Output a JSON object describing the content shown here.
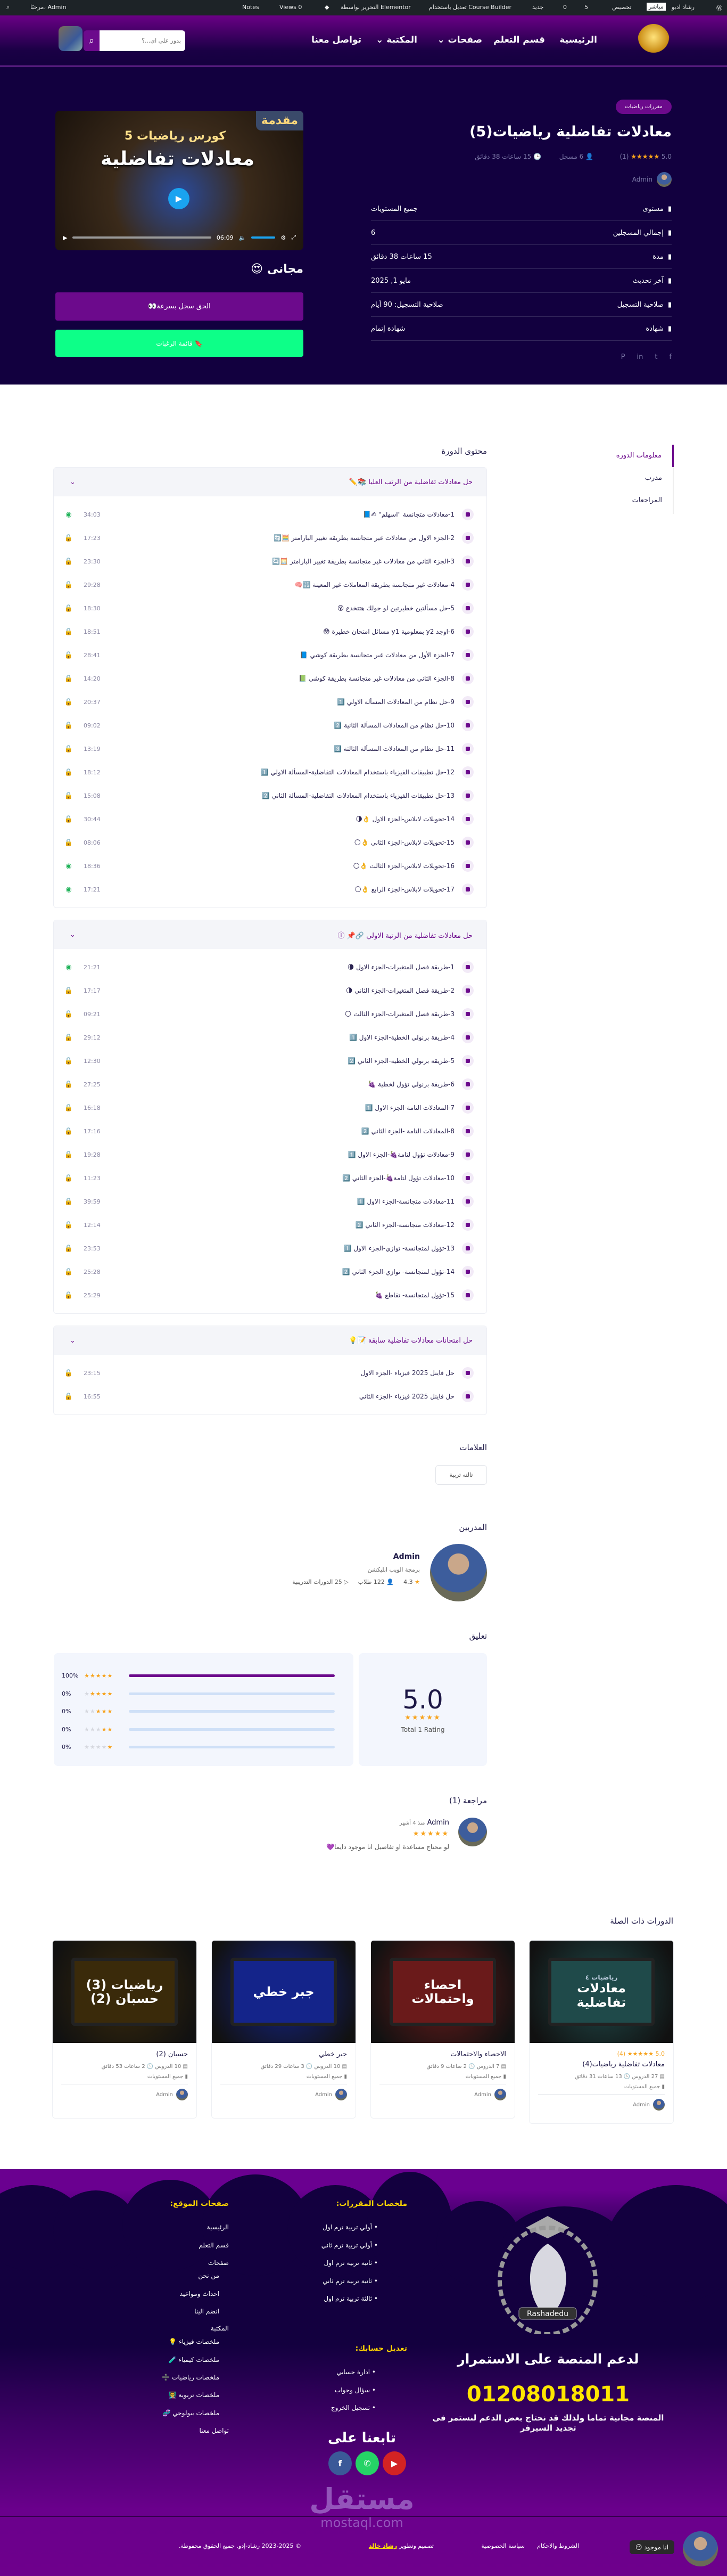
{
  "adminbar": {
    "site": "رشاد ادبو",
    "live": "مباشر",
    "customize": "تخصيص",
    "updates": "5",
    "comments": "0",
    "new": "جديد",
    "course_builder": "تعديل باستخدام Course Builder",
    "elementor": "التحرير بواسطة Elementor",
    "views": "Views 0",
    "notes": "Notes",
    "greeting": "مرحبًا، Admin"
  },
  "nav": {
    "items": [
      "الرئيسية",
      "قسم التعلم",
      "صفحات ⌄",
      "المكتبة ⌄",
      "تواصل معنا"
    ],
    "search_placeholder": "بدور على اي...؟"
  },
  "course": {
    "category": "مقررات رياضيات",
    "title": "معادلات تفاضلية رياضيات(5)",
    "rating": "5.0",
    "stars": "★★★★★",
    "rating_count": "(1)",
    "enrolled": "6 مسجل",
    "duration": "15 ساعات 38 دقائق",
    "author": "Admin",
    "info": [
      {
        "label": "مستوى",
        "icon": "bars-icon",
        "value": "جميع المستويات"
      },
      {
        "label": "إجمالي المسجلين",
        "icon": "user-icon",
        "value": "6"
      },
      {
        "label": "مدة",
        "icon": "clock-icon",
        "value": "15 ساعات 38 دقائق"
      },
      {
        "label": "آخر تحديث",
        "icon": "refresh-icon",
        "value": "مايو 1, 2025"
      },
      {
        "label": "صلاحية التسجيل",
        "icon": "calendar-icon",
        "value": "صلاحية التسجيل: 90 أيام"
      },
      {
        "label": "شهادة",
        "icon": "certificate-icon",
        "value": "شهادة إتمام"
      }
    ],
    "video": {
      "tag": "مقدمة",
      "line1": "كورس رياضيات 5",
      "line2": "معادلات تفاضلية",
      "time": "06:09"
    },
    "price": "مجانى 😍",
    "enroll_label": "الحق سجل بسرعة👀",
    "wishlist_label": "🔖 قائمة الرغبات"
  },
  "tabs": [
    "معلومات الدورة",
    "مدرب",
    "المراجعات"
  ],
  "curriculum": {
    "heading": "محتوى الدورة",
    "topics": [
      {
        "title": "حل معادلات تفاضلية من الرتب العليا 📚✏️",
        "lessons": [
          [
            "1-معادلات متجانسة \"اسهلم\" ✍📘",
            "34:03",
            "preview"
          ],
          [
            "2-الجزء الاول من معادلات غير متجانسة بطريقة تغيير البارامتر 🧮🔄",
            "17:23",
            "locked"
          ],
          [
            "3-الجزء الثاني من معادلات غير متجانسة بطريقة تغيير البارامتر 🧮🔄",
            "23:30",
            "locked"
          ],
          [
            "4-معادلات غير متجانسة بطريقة المعاملات غير المعينة 🔢🧠",
            "29:28",
            "locked"
          ],
          [
            "5-حل مسألتين خطيرتين لو جولك هتتخدع 😵",
            "18:30",
            "locked"
          ],
          [
            "6-اوجد y2 بمعلومية y1 مسائل امتحان خطيرة 😳",
            "18:51",
            "locked"
          ],
          [
            "7-الجزء الأول من معادلات غير متجانسة بطريقة كوشي 📘",
            "28:41",
            "locked"
          ],
          [
            "8-الجزء الثاني من معادلات غير متجانسة بطريقة كوشي 📗",
            "14:20",
            "locked"
          ],
          [
            "9-حل نظام من المعادلات المسألة الاولي 1️⃣",
            "20:37",
            "locked"
          ],
          [
            "10-حل نظام من المعادلات المسألة الثانية 2️⃣",
            "09:02",
            "locked"
          ],
          [
            "11-حل نظام من المعادلات المسألة الثالثة 3️⃣",
            "13:19",
            "locked"
          ],
          [
            "12-حل تطبيقات الفيزياء باستخدام المعادلات التفاضلية-المسألة الاولي 1️⃣",
            "18:12",
            "locked"
          ],
          [
            "13-حل تطبيقات الفيزياء باستخدام المعادلات التفاضلية-المسألة الثاني 2️⃣",
            "15:08",
            "locked"
          ],
          [
            "14-تحويلات لابلاس-الجزء الاول 👌🌗",
            "30:44",
            "locked"
          ],
          [
            "15-تحويلات لابلاس-الجزء الثاني 👌🌕",
            "08:06",
            "locked"
          ],
          [
            "16-تحويلات لابلاس-الجزء الثالث 👌🌕",
            "18:36",
            "preview"
          ],
          [
            "17-تحويلات لابلاس-الجزء الرابع 👌🌕",
            "17:21",
            "preview"
          ]
        ]
      },
      {
        "title": "حل معادلات تفاضلية من الرتبة الاولي 🔗📌 ⓘ",
        "lessons": [
          [
            "1-طريقة فصل المتغيرات-الجزء الاول 🌘",
            "21:21",
            "preview"
          ],
          [
            "2-طريقة فصل المتغيرات-الجزء الثاني 🌗",
            "17:17",
            "locked"
          ],
          [
            "3-طريقة فصل المتغيرات-الجزء الثالث 🌕",
            "09:21",
            "locked"
          ],
          [
            "4-طريقة برنولي الخطية-الجزء الاول 1️⃣",
            "29:12",
            "locked"
          ],
          [
            "5-طريقة برنولي الخطية-الجزء الثاني 2️⃣",
            "12:30",
            "locked"
          ],
          [
            "6-طريقة برنولي تؤول لخطية 🍇",
            "27:25",
            "locked"
          ],
          [
            "7-المعادلات التامة-الجزء الاول 1️⃣",
            "16:18",
            "locked"
          ],
          [
            "8-المعادلات التامة -الجزء الثاني 2️⃣",
            "17:16",
            "locked"
          ],
          [
            "9-معادلات تؤول لتامة🍇-الجزء الاول 1️⃣",
            "19:28",
            "locked"
          ],
          [
            "10-معادلات تؤول لتامة🍇-الجزء الثاني 2️⃣",
            "11:23",
            "locked"
          ],
          [
            "11-معادلات متجانسة-الجزء الاول 1️⃣",
            "39:59",
            "locked"
          ],
          [
            "12-معادلات متجانسة-الجزء الثاني 2️⃣",
            "12:14",
            "locked"
          ],
          [
            "13-تؤول لمتجانسة- توازي-الجزء الاول 1️⃣",
            "23:53",
            "locked"
          ],
          [
            "14-تؤول لمتجانسة- توازي-الجزء الثاني 2️⃣",
            "25:28",
            "locked"
          ],
          [
            "15-تؤول لمتجانسة- تقاطع 🍇",
            "25:29",
            "locked"
          ]
        ]
      },
      {
        "title": "حل امتحانات معادلات تفاضلية سابقة 📝💡",
        "lessons": [
          [
            "حل فاينل 2025 فيزياء -الجزء الاول",
            "23:15",
            "locked"
          ],
          [
            "حل فاينل 2025 فيزياء -الجزء الثاني",
            "16:55",
            "locked"
          ]
        ]
      }
    ]
  },
  "tags": {
    "heading": "العلامات",
    "items": [
      "تالته تربية"
    ]
  },
  "instructors": {
    "heading": "المدربين",
    "name": "Admin",
    "subtitle": "برمجة الويب ابليكشن",
    "rating": "4.3",
    "students": "122 طلاب",
    "courses": "25 الدورات التدريبية"
  },
  "feedback": {
    "heading": "تعليق",
    "average": "5.0",
    "stars": "★★★★★",
    "total": "Total 1 Rating",
    "distribution": [
      {
        "stars": 5,
        "percent": 100,
        "label": "100%"
      },
      {
        "stars": 4,
        "percent": 0,
        "label": "0%"
      },
      {
        "stars": 3,
        "percent": 0,
        "label": "0%"
      },
      {
        "stars": 2,
        "percent": 0,
        "label": "0%"
      },
      {
        "stars": 1,
        "percent": 0,
        "label": "0%"
      }
    ]
  },
  "reviews": {
    "heading": "مراجعة (1)",
    "items": [
      {
        "author": "Admin",
        "time": "منذ 4 أشهر",
        "stars": "★★★★★",
        "text": "لو محتاج مساعدة او تفاصيل انا موجود دايما💜"
      }
    ]
  },
  "related": {
    "heading": "الدورات ذات الصلة",
    "cards": [
      {
        "title": "معادلات تفاضلية رياضيات(4)",
        "rating": "5.0 ★★★★★ (4)",
        "lessons": "27 الدروس",
        "duration": "13 ساعات 31 دقائق",
        "level": "جميع المستويات",
        "author": "Admin",
        "img_small": "رياضيات ٤",
        "img_text": "معادلات تفاضلية",
        "color": "#1f4a4a"
      },
      {
        "title": "الاحصاء والاحتمالات",
        "rating": "",
        "lessons": "7 الدروس",
        "duration": "2 ساعات 9 دقائق",
        "level": "جميع المستويات",
        "author": "Admin",
        "img_small": "",
        "img_text": "احصاء واحتمالات",
        "color": "#6a1a1a"
      },
      {
        "title": "جبر خطي",
        "rating": "",
        "lessons": "10 الدروس",
        "duration": "3 ساعات 29 دقائق",
        "level": "جميع المستويات",
        "author": "Admin",
        "img_small": "",
        "img_text": "جبر خطي",
        "color": "#14248a"
      },
      {
        "title": "حسبان (2)",
        "rating": "",
        "lessons": "10 الدروس",
        "duration": "2 ساعات 53 دقائق",
        "level": "جميع المستويات",
        "author": "Admin",
        "img_small": "",
        "img_text": "رياضيات (3) حسبان (2)",
        "color": "#3a2a0a"
      }
    ]
  },
  "footer": {
    "logo_text": "Rashadedu",
    "courses_heading": "ملخصات المقررات:",
    "courses": [
      "أولي تربية ترم اول",
      "أولي تربية ترم ثاني",
      "ثانية تربية ترم اول",
      "ثانية تربية ترم ثاني",
      "ثالثة تربية ترم اول"
    ],
    "pages_heading": "صفحات الموقع:",
    "pages": [
      "الرئيسية",
      "قسم التعلم",
      "صفحات",
      "من نحن",
      "احداث ومواعيد",
      "انضم الينا",
      "المكتبة",
      "ملخصات فيزياء 💡",
      "ملخصات كيمياء 🧪",
      "ملخصات رياضيات ➗",
      "ملخصات تربوية 👨‍🏫",
      "ملخصات بيولوجي 🧬",
      "تواصل معنا"
    ],
    "account_heading": "تعديل حسابك:",
    "account": [
      "ادارة حسابي",
      "سؤال وجواب",
      "تسجيل الخروج"
    ],
    "support": "لدعم المنصة على الاستمرار",
    "phone": "01208018011",
    "support_text": "المنصة مجانية تماما ولذلك قد نحتاج بعض الدعم لنستمر فى تجديد السيرفر",
    "follow": "تابعنا على",
    "watermark": "مستقل",
    "watermark_url": "mostaql.com",
    "terms": "الشروط والاحكام",
    "privacy": "سياسة الخصوصية",
    "credit": "تصميم وتطوير",
    "credit_name": "رشاد خالد",
    "copyright": "© 2023-2025 رشاد-إدو. جميع الحقوق محفوظة.",
    "chat": "انا موجود 😶"
  }
}
